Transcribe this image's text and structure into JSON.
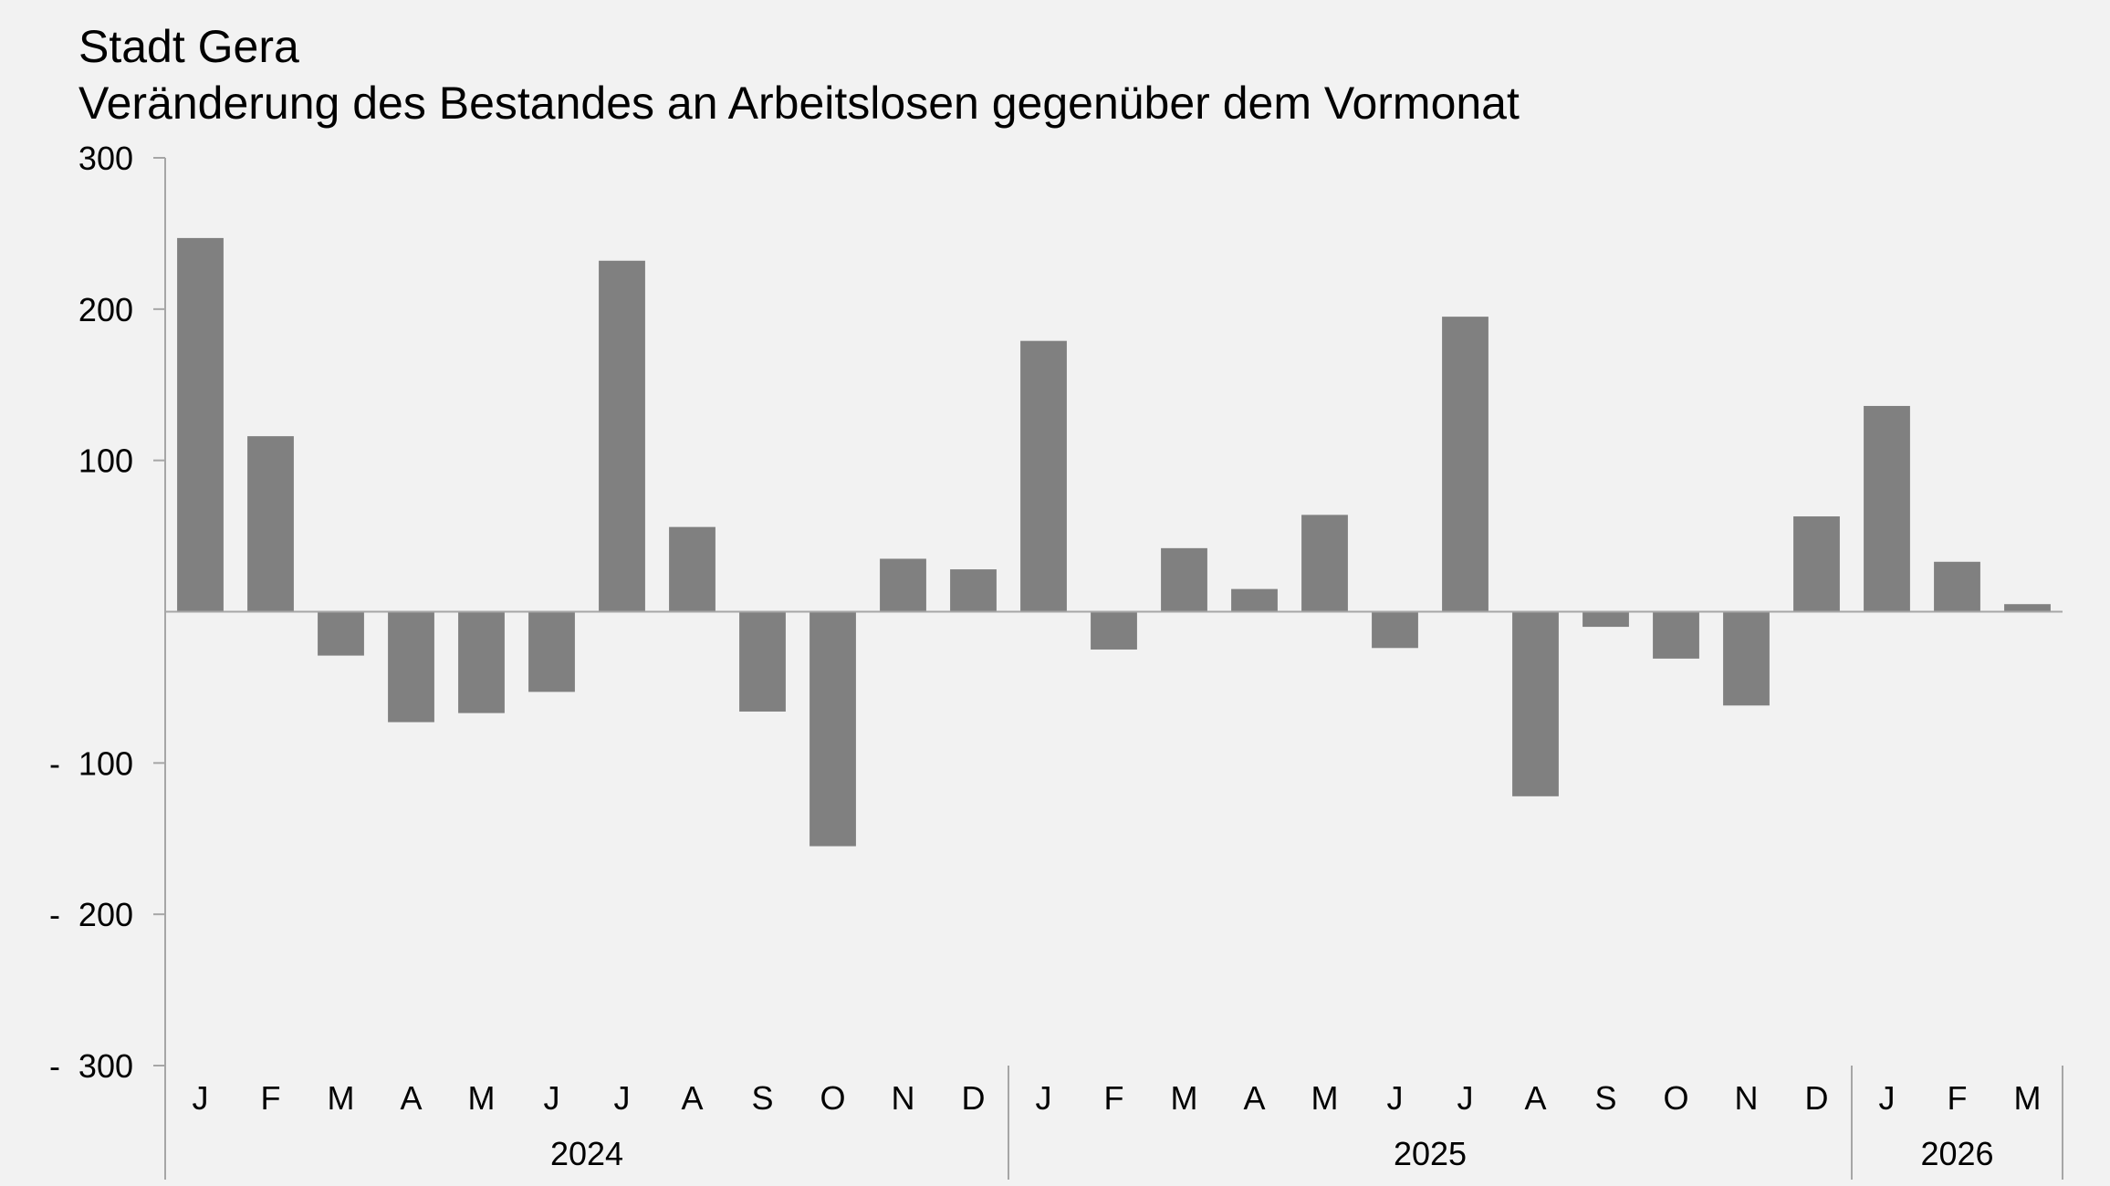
{
  "chart_data": {
    "type": "bar",
    "title": "Stadt Gera",
    "subtitle": "Veränderung des Bestandes an Arbeitslosen gegenüber dem Vormonat",
    "categories": [
      "J",
      "F",
      "M",
      "A",
      "M",
      "J",
      "J",
      "A",
      "S",
      "O",
      "N",
      "D",
      "J",
      "F",
      "M",
      "A",
      "M",
      "J",
      "J",
      "A",
      "S",
      "O",
      "N",
      "D",
      "J",
      "F",
      "M"
    ],
    "years": [
      {
        "label": "2024",
        "months": 12
      },
      {
        "label": "2025",
        "months": 12
      },
      {
        "label": "2026",
        "months": 3
      }
    ],
    "values": [
      247,
      116,
      -29,
      -73,
      -67,
      -53,
      232,
      56,
      -66,
      -155,
      35,
      28,
      179,
      -25,
      42,
      15,
      64,
      -24,
      195,
      -122,
      -10,
      -31,
      -62,
      63,
      136,
      33,
      5
    ],
    "ylim": [
      -300,
      300
    ],
    "yticks": [
      300,
      200,
      100,
      -100,
      -200,
      -300
    ],
    "ytick_labels": [
      "300",
      "200",
      "100",
      "-  100",
      "-  200",
      "-  300"
    ],
    "xlabel": "",
    "ylabel": "",
    "grid": false,
    "bar_color": "#808080",
    "axis_color": "#a6a6a6"
  }
}
